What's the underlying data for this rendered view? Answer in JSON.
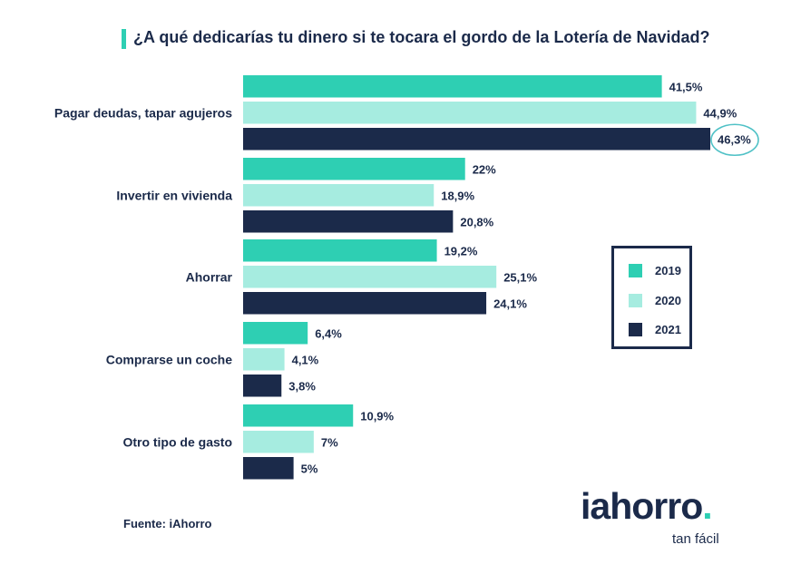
{
  "title": "¿A qué dedicarías tu dinero si te tocara el gordo de la Lotería de Navidad?",
  "source": "Fuente: iAhorro",
  "logo": {
    "main": "iahorro",
    "dot": ".",
    "tagline": "tan fácil"
  },
  "colors": {
    "2019": "#2ecfb3",
    "2020": "#a6ece0",
    "2021": "#1b2a4a",
    "highlight": "#4fc1c6",
    "text": "#1b2a4a"
  },
  "chart_data": {
    "type": "bar",
    "orientation": "horizontal",
    "title": "¿A qué dedicarías tu dinero si te tocara el gordo de la Lotería de Navidad?",
    "categories": [
      "Pagar deudas, tapar agujeros",
      "Invertir en vivienda",
      "Ahorrar",
      "Comprarse un coche",
      "Otro tipo de gasto"
    ],
    "series": [
      {
        "name": "2019",
        "values": [
          41.5,
          22,
          19.2,
          6.4,
          10.9
        ],
        "labels": [
          "41,5%",
          "22%",
          "19,2%",
          "6,4%",
          "10,9%"
        ]
      },
      {
        "name": "2020",
        "values": [
          44.9,
          18.9,
          25.1,
          4.1,
          7
        ],
        "labels": [
          "44,9%",
          "18,9%",
          "25,1%",
          "4,1%",
          "7%"
        ]
      },
      {
        "name": "2021",
        "values": [
          46.3,
          20.8,
          24.1,
          3.8,
          5
        ],
        "labels": [
          "46,3%",
          "20,8%",
          "24,1%",
          "3,8%",
          "5%"
        ]
      }
    ],
    "xlim": [
      0,
      46.3
    ],
    "grid": false,
    "legend": "right",
    "highlighted_value": "46,3%"
  }
}
